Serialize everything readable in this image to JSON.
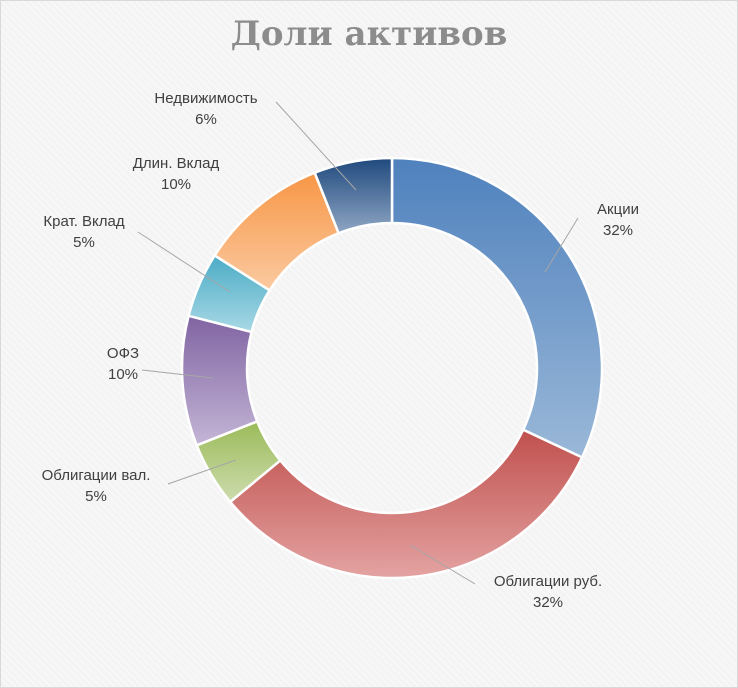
{
  "chart_data": {
    "type": "pie",
    "variant": "donut",
    "title": "Доли активов",
    "slices": [
      {
        "label": "Акции",
        "value": 32,
        "pct": "32%",
        "color": "#4f81bd",
        "color_light": "#9ab8d8"
      },
      {
        "label": "Облигации руб.",
        "value": 32,
        "pct": "32%",
        "color": "#c0504d",
        "color_light": "#e3a3a2"
      },
      {
        "label": "Облигации вал.",
        "value": 5,
        "pct": "5%",
        "color": "#9bbb59",
        "color_light": "#cddcae"
      },
      {
        "label": "ОФЗ",
        "value": 10,
        "pct": "10%",
        "color": "#8064a2",
        "color_light": "#c4b5d6"
      },
      {
        "label": "Крат. Вклад",
        "value": 5,
        "pct": "5%",
        "color": "#4bacc6",
        "color_light": "#a8d8e5"
      },
      {
        "label": "Длин. Вклад",
        "value": 10,
        "pct": "10%",
        "color": "#f79646",
        "color_light": "#fbcaa0"
      },
      {
        "label": "Недвижимость",
        "value": 6,
        "pct": "6%",
        "color": "#1f497d",
        "color_light": "#8fa6c4"
      }
    ],
    "legend": "none",
    "data_labels": "outside-with-leader-lines"
  }
}
